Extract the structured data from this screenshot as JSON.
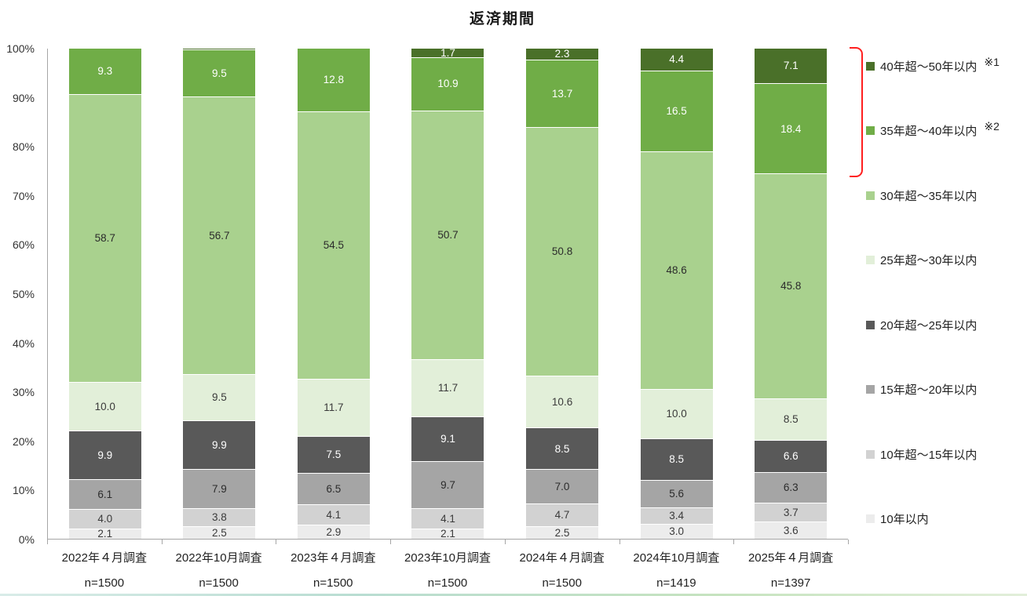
{
  "chart_data": {
    "type": "bar",
    "stacked": true,
    "unit": "%",
    "title": "返済期間",
    "xlabel": "",
    "ylabel": "",
    "ylim": [
      0,
      100
    ],
    "grid": false,
    "legend_position": "right",
    "y_ticks": [
      "100%",
      "90%",
      "80%",
      "70%",
      "60%",
      "50%",
      "40%",
      "30%",
      "20%",
      "10%",
      "0%"
    ],
    "categories": [
      {
        "label": "2022年４月調査",
        "n": "n=1500"
      },
      {
        "label": "2022年10月調査",
        "n": "n=1500"
      },
      {
        "label": "2023年４月調査",
        "n": "n=1500"
      },
      {
        "label": "2023年10月調査",
        "n": "n=1500"
      },
      {
        "label": "2024年４月調査",
        "n": "n=1500"
      },
      {
        "label": "2024年10月調査",
        "n": "n=1419"
      },
      {
        "label": "2025年４月調査",
        "n": "n=1397"
      }
    ],
    "series": [
      {
        "name": "10年以内",
        "color": "#ececec",
        "label_color": "#3a3a3a",
        "values": [
          2.1,
          2.5,
          2.9,
          2.1,
          2.5,
          3.0,
          3.6
        ]
      },
      {
        "name": "10年超～15年以内",
        "color": "#d2d2d2",
        "label_color": "#3a3a3a",
        "values": [
          4.0,
          3.8,
          4.1,
          4.1,
          4.7,
          3.4,
          3.7
        ]
      },
      {
        "name": "15年超～20年以内",
        "color": "#a5a5a5",
        "label_color": "#2b2b2b",
        "values": [
          6.1,
          7.9,
          6.5,
          9.7,
          7.0,
          5.6,
          6.3
        ]
      },
      {
        "name": "20年超～25年以内",
        "color": "#595959",
        "label_color": "#ffffff",
        "values": [
          9.9,
          9.9,
          7.5,
          9.1,
          8.5,
          8.5,
          6.6
        ]
      },
      {
        "name": "25年超～30年以内",
        "color": "#e2efd9",
        "label_color": "#3a3a3a",
        "values": [
          10.0,
          9.5,
          11.7,
          11.7,
          10.6,
          10.0,
          8.5
        ]
      },
      {
        "name": "30年超～35年以内",
        "color": "#a9d18e",
        "label_color": "#2b2b2b",
        "values": [
          58.7,
          56.7,
          54.5,
          50.7,
          50.8,
          48.6,
          45.8
        ]
      },
      {
        "name": "35年超～40年以内",
        "color": "#70ad47",
        "label_color": "#ffffff",
        "values": [
          9.3,
          9.5,
          12.8,
          10.9,
          13.7,
          16.5,
          18.4
        ]
      },
      {
        "name": "40年超～50年以内",
        "color": "#4a7029",
        "label_color": "#ffffff",
        "values": [
          0,
          0.2,
          0,
          1.7,
          2.3,
          4.4,
          7.1
        ]
      }
    ],
    "legend": [
      {
        "name": "40年超～50年以内",
        "note": "※1"
      },
      {
        "name": "35年超～40年以内",
        "note": "※2"
      },
      {
        "name": "30年超～35年以内"
      },
      {
        "name": "25年超～30年以内"
      },
      {
        "name": "20年超～25年以内"
      },
      {
        "name": "15年超～20年以内"
      },
      {
        "name": "10年超～15年以内"
      },
      {
        "name": "10年以内"
      }
    ],
    "annotations": {
      "bracket_color": "#ff1f1f",
      "bracket_covers": [
        "40年超～50年以内",
        "35年超～40年以内"
      ]
    }
  }
}
